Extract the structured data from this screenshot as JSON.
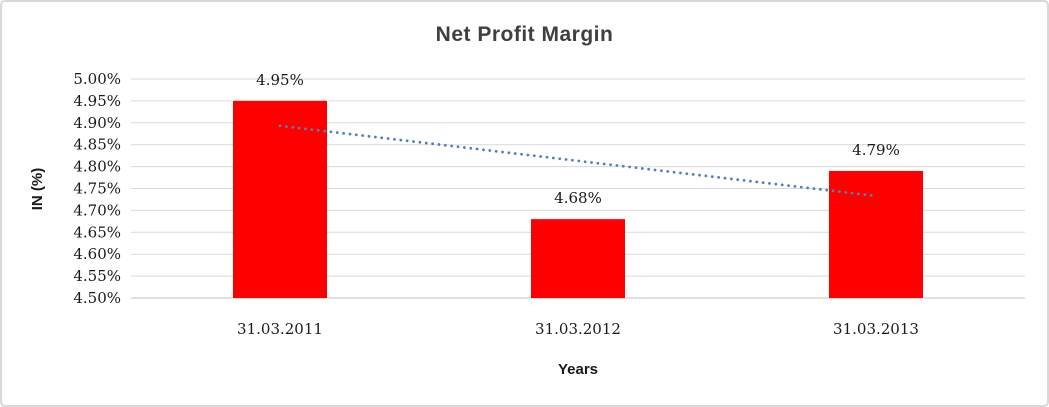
{
  "chart_data": {
    "type": "bar",
    "title": "Net Profit Margin",
    "categories": [
      "31.03.2011",
      "31.03.2012",
      "31.03.2013"
    ],
    "values": [
      4.95,
      4.68,
      4.79
    ],
    "data_labels": [
      "4.95%",
      "4.68%",
      "4.79%"
    ],
    "xlabel": "Years",
    "ylabel": "IN (%)",
    "ylim": [
      4.5,
      5.0
    ],
    "ytick_step": 0.05,
    "ytick_labels": [
      "5.00%",
      "4.95%",
      "4.90%",
      "4.85%",
      "4.80%",
      "4.75%",
      "4.70%",
      "4.65%",
      "4.60%",
      "4.55%",
      "4.50%"
    ],
    "grid": true,
    "legend": "none",
    "trendline": {
      "type": "linear",
      "style": "dotted",
      "start_value": 4.893,
      "end_value": 4.733
    },
    "colors": {
      "bar": "#FF0000",
      "trendline": "#4F81BD",
      "gridline": "#D9D9D9",
      "axis_line": "#C0C0C0",
      "title": "#3F3F3F",
      "labels": "#1A1A1A",
      "chart_border": "#D8D8D8",
      "background": "#FFFFFF"
    }
  }
}
